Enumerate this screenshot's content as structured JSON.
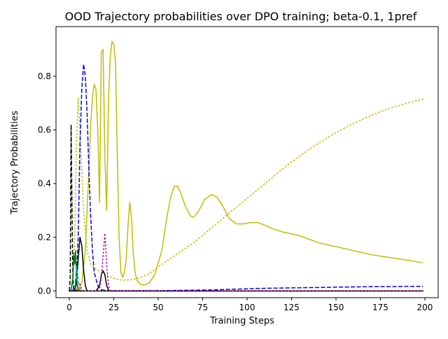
{
  "chart_data": {
    "type": "line",
    "title": "OOD Trajectory probabilities over DPO training; beta-0.1, 1pref",
    "xlabel": "Training Steps",
    "ylabel": "Trajectory Probabilities",
    "xlim": [
      -7.5,
      207.5
    ],
    "ylim": [
      -0.025,
      0.985
    ],
    "xticks": [
      0,
      25,
      50,
      75,
      100,
      125,
      150,
      175,
      200
    ],
    "yticks": [
      0.0,
      0.2,
      0.4,
      0.6,
      0.8
    ],
    "ytick_labels": [
      "0.0",
      "0.2",
      "0.4",
      "0.6",
      "0.8"
    ],
    "grid": false,
    "legend": "none",
    "series": [
      {
        "color": "#bfbf00",
        "style": "solid",
        "x": [
          0,
          3,
          5,
          7,
          9,
          11,
          12,
          13,
          14,
          15,
          16,
          17,
          18,
          19,
          20,
          21,
          22,
          23,
          24,
          25,
          26,
          27,
          28,
          29,
          30,
          31,
          32,
          33,
          34,
          35,
          36,
          37,
          38,
          40,
          42,
          45,
          48,
          52,
          55,
          57,
          59,
          61,
          63,
          65,
          68,
          70,
          73,
          76,
          80,
          83,
          86,
          90,
          94,
          98,
          102,
          106,
          110,
          115,
          120,
          130,
          140,
          150,
          160,
          170,
          180,
          190,
          199
        ],
        "y": [
          0,
          0,
          0.005,
          0.03,
          0.15,
          0.45,
          0.62,
          0.72,
          0.77,
          0.75,
          0.6,
          0.33,
          0.89,
          0.9,
          0.5,
          0.3,
          0.7,
          0.87,
          0.93,
          0.92,
          0.85,
          0.5,
          0.2,
          0.07,
          0.05,
          0.07,
          0.12,
          0.24,
          0.33,
          0.27,
          0.14,
          0.07,
          0.04,
          0.025,
          0.022,
          0.03,
          0.06,
          0.15,
          0.28,
          0.35,
          0.39,
          0.39,
          0.36,
          0.32,
          0.28,
          0.275,
          0.3,
          0.34,
          0.36,
          0.35,
          0.32,
          0.27,
          0.25,
          0.25,
          0.255,
          0.255,
          0.245,
          0.23,
          0.22,
          0.205,
          0.18,
          0.165,
          0.15,
          0.135,
          0.125,
          0.115,
          0.105
        ]
      },
      {
        "color": "#bfbf00",
        "style": "dotted",
        "x": [
          0,
          2,
          3,
          4,
          5,
          6,
          8,
          10,
          12,
          14,
          18,
          22,
          26,
          30,
          35,
          40,
          45,
          50,
          60,
          70,
          80,
          90,
          100,
          110,
          120,
          130,
          140,
          150,
          160,
          170,
          180,
          190,
          199
        ],
        "y": [
          0,
          0.02,
          0.2,
          0.55,
          0.72,
          0.6,
          0.3,
          0.15,
          0.1,
          0.085,
          0.07,
          0.055,
          0.045,
          0.04,
          0.042,
          0.05,
          0.065,
          0.09,
          0.135,
          0.18,
          0.235,
          0.29,
          0.345,
          0.4,
          0.455,
          0.505,
          0.55,
          0.59,
          0.625,
          0.655,
          0.68,
          0.7,
          0.715
        ]
      },
      {
        "color": "#0000ff",
        "style": "dashed",
        "x": [
          0,
          2,
          3,
          4,
          5,
          6,
          7,
          8,
          9,
          10,
          11,
          12,
          13,
          14,
          16,
          18,
          20,
          25,
          30,
          40,
          50,
          60,
          70,
          80,
          90,
          100,
          110,
          120,
          130,
          140,
          150,
          160,
          170,
          180,
          190,
          199
        ],
        "y": [
          0,
          0,
          0.01,
          0.05,
          0.2,
          0.55,
          0.75,
          0.845,
          0.8,
          0.66,
          0.45,
          0.28,
          0.15,
          0.07,
          0.02,
          0.005,
          0.002,
          0.001,
          0.001,
          0.001,
          0.001,
          0.002,
          0.003,
          0.004,
          0.006,
          0.008,
          0.01,
          0.011,
          0.012,
          0.013,
          0.014,
          0.015,
          0.016,
          0.016,
          0.017,
          0.017
        ]
      },
      {
        "color": "#000000",
        "style": "dashed",
        "x": [
          0,
          0.5,
          1,
          1.5,
          2,
          2.5,
          3,
          4,
          6,
          199
        ],
        "y": [
          0,
          0.05,
          0.62,
          0.3,
          0.04,
          0.005,
          0,
          0,
          0,
          0
        ]
      },
      {
        "color": "#000000",
        "style": "solid",
        "x": [
          0,
          3,
          4,
          5,
          6,
          7,
          8,
          9,
          10,
          15,
          17,
          18,
          19,
          20,
          21,
          22,
          23,
          30,
          199
        ],
        "y": [
          0,
          0,
          0.03,
          0.12,
          0.2,
          0.17,
          0.08,
          0.02,
          0,
          0,
          0.02,
          0.06,
          0.075,
          0.06,
          0.02,
          0.003,
          0,
          0,
          0
        ]
      },
      {
        "color": "#008000",
        "style": "solid",
        "x": [
          0,
          1,
          2,
          2.5,
          3,
          3.5,
          4,
          4.5,
          5,
          6,
          7,
          199
        ],
        "y": [
          0,
          0.005,
          0.05,
          0.14,
          0.1,
          0.15,
          0.06,
          0.02,
          0.005,
          0,
          0,
          0
        ]
      },
      {
        "color": "#00bfbf",
        "style": "dashed",
        "x": [
          0,
          3,
          4,
          5,
          6,
          7,
          199
        ],
        "y": [
          0,
          0.01,
          0.09,
          0.04,
          0.005,
          0,
          0
        ]
      },
      {
        "color": "#ff0000",
        "style": "dotted",
        "x": [
          0,
          4,
          5,
          6,
          7,
          8,
          199
        ],
        "y": [
          0,
          0.003,
          0.02,
          0.025,
          0.005,
          0,
          0
        ]
      },
      {
        "color": "#bf00bf",
        "style": "dotted",
        "x": [
          0,
          15,
          17,
          18,
          19,
          20,
          21,
          22,
          23,
          199
        ],
        "y": [
          0,
          0,
          0.01,
          0.05,
          0.13,
          0.215,
          0.1,
          0.02,
          0,
          0
        ]
      },
      {
        "color": "#000000",
        "style": "dotted",
        "x": [
          0,
          199
        ],
        "y": [
          0,
          0
        ]
      }
    ]
  }
}
